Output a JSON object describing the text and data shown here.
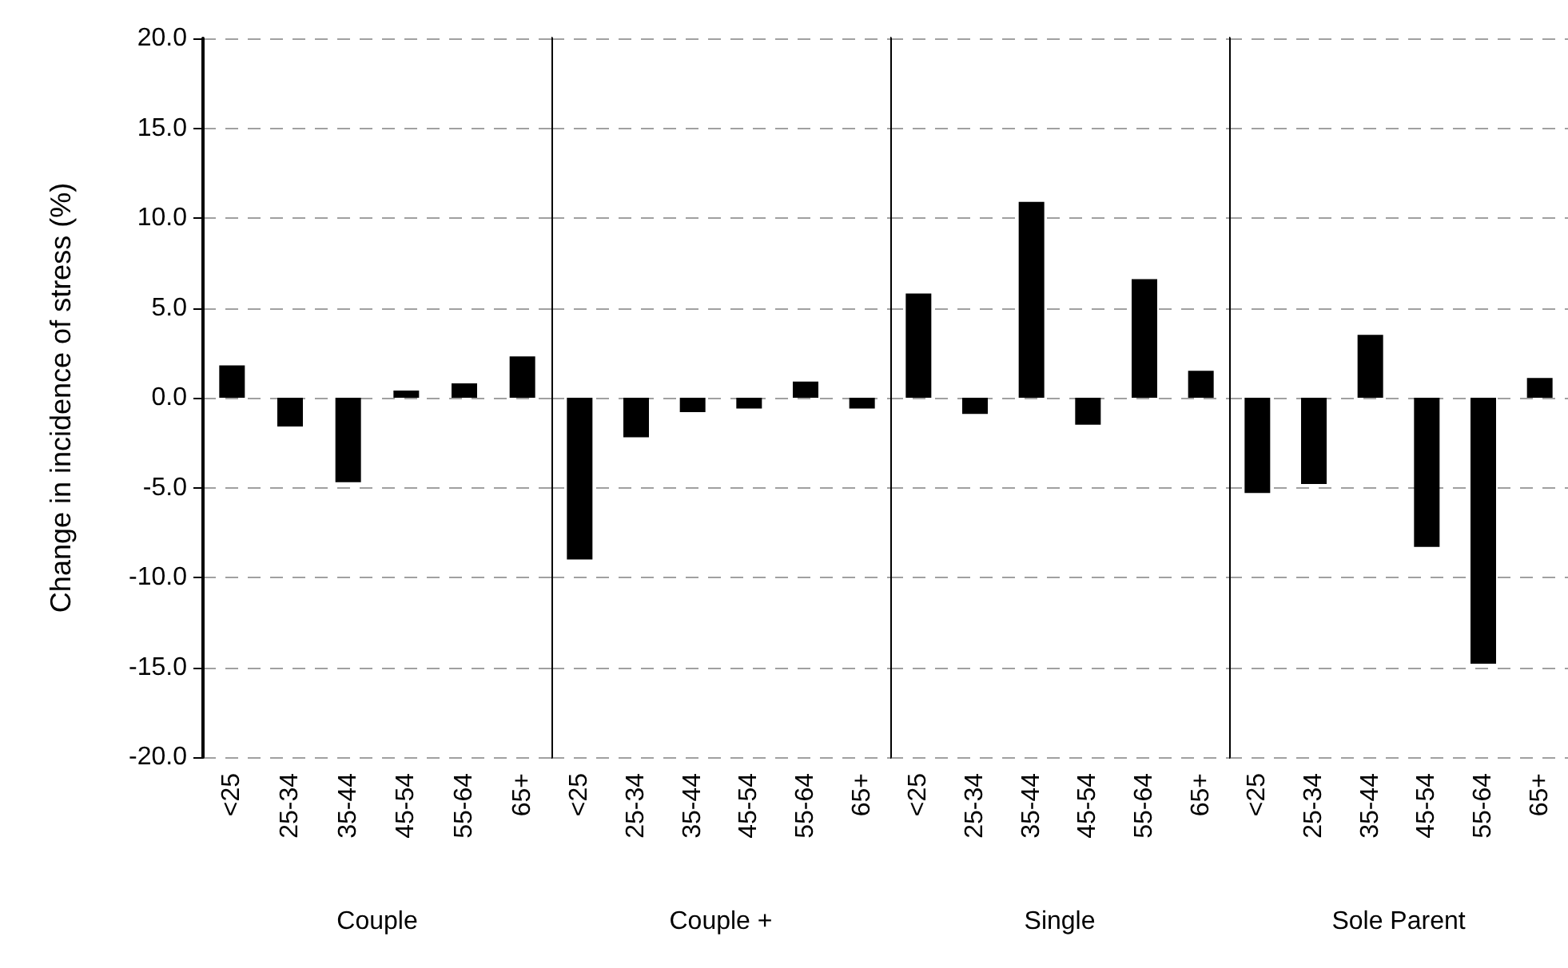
{
  "chart_data": [
    {
      "type": "bar",
      "xlabel": "Couple",
      "ylabel": "Change in incidence of stress (%)",
      "categories": [
        "<25",
        "25-34",
        "35-44",
        "45-54",
        "55-64",
        "65+"
      ],
      "series": [
        {
          "color": "#000000",
          "values": [
            1.8,
            -1.6,
            -4.7,
            0.4,
            0.8,
            2.3
          ]
        }
      ],
      "ylim": [
        -20,
        20
      ],
      "yticks": [
        {
          "value": -20,
          "label": "-20.0"
        },
        {
          "value": -15,
          "label": "-15.0"
        },
        {
          "value": -10,
          "label": "-10.0"
        },
        {
          "value": -5,
          "label": "-5.0"
        },
        {
          "value": 0,
          "label": "0.0"
        },
        {
          "value": 5,
          "label": "5.0"
        },
        {
          "value": 10,
          "label": "10.0"
        },
        {
          "value": 15,
          "label": "15.0"
        },
        {
          "value": 20,
          "label": "20.0"
        }
      ],
      "grid": "y"
    },
    {
      "type": "bar",
      "xlabel": "Couple +",
      "categories": [
        "<25",
        "25-34",
        "35-44",
        "45-54",
        "55-64",
        "65+"
      ],
      "series": [
        {
          "color": "#000000",
          "values": [
            -9.0,
            -2.2,
            -0.8,
            -0.6,
            0.9,
            -0.6
          ]
        }
      ],
      "ylim": [
        -20,
        20
      ],
      "yticks": [
        -20,
        -15,
        -10,
        -5,
        0,
        5,
        10,
        15,
        20
      ],
      "grid": "y",
      "tick_labels": "x"
    },
    {
      "type": "bar",
      "xlabel": "Single",
      "categories": [
        "<25",
        "25-34",
        "35-44",
        "45-54",
        "55-64",
        "65+"
      ],
      "series": [
        {
          "color": "#000000",
          "values": [
            5.8,
            -0.9,
            10.9,
            -1.5,
            6.6,
            1.5
          ]
        }
      ],
      "ylim": [
        -20,
        20
      ],
      "yticks": [
        -20,
        -15,
        -10,
        -5,
        0,
        5,
        10,
        15,
        20
      ],
      "grid": "y",
      "tick_labels": "x"
    },
    {
      "type": "bar",
      "xlabel": "Sole Parent",
      "categories": [
        "<25",
        "25-34",
        "35-44",
        "45-54",
        "55-64",
        "65+"
      ],
      "series": [
        {
          "color": "#000000",
          "values": [
            -5.3,
            -4.8,
            3.5,
            -8.3,
            -14.8,
            1.1
          ]
        }
      ],
      "ylim": [
        -20,
        20
      ],
      "yticks": [
        -20,
        -15,
        -10,
        -5,
        0,
        5,
        10,
        15,
        20
      ],
      "grid": "y",
      "tick_labels": "x"
    }
  ]
}
